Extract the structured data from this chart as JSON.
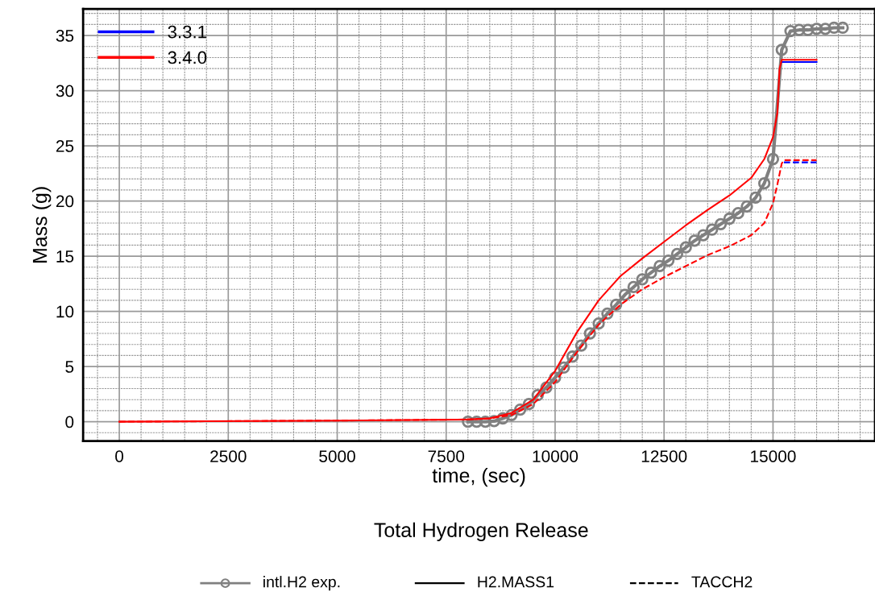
{
  "chart_data": {
    "type": "line",
    "title": "Total Hydrogen Release",
    "xlabel": "time, (sec)",
    "ylabel": "Mass (g)",
    "xlim": [
      -830,
      17340
    ],
    "ylim": [
      -1.75,
      37.4
    ],
    "xticks": [
      0,
      2500,
      5000,
      7500,
      10000,
      12500,
      15000
    ],
    "yticks": [
      0,
      5,
      10,
      15,
      20,
      25,
      30,
      35
    ],
    "grid": true,
    "legend": "top left",
    "annotations": [
      "intl.H2 exp.",
      "H2.MASS1",
      "TACCH2"
    ],
    "series": [
      {
        "color": "#808080",
        "marker": "circle",
        "line_style": "solid",
        "x": [
          8000,
          8200,
          8400,
          8600,
          8800,
          9000,
          9200,
          9400,
          9600,
          9800,
          10000,
          10200,
          10400,
          10600,
          10800,
          11000,
          11200,
          11400,
          11600,
          11800,
          12000,
          12200,
          12400,
          12600,
          12800,
          13000,
          13200,
          13400,
          13600,
          13800,
          14000,
          14200,
          14400,
          14600,
          14800,
          15000,
          15200,
          15400,
          15600,
          15800,
          16000,
          16200,
          16400,
          16600
        ],
        "values": [
          0,
          0,
          0,
          0.05,
          0.3,
          0.6,
          1.1,
          1.6,
          2.4,
          3.1,
          4,
          4.9,
          5.9,
          6.9,
          8,
          8.9,
          9.8,
          10.6,
          11.5,
          12.2,
          12.9,
          13.5,
          14.1,
          14.6,
          15.2,
          15.8,
          16.4,
          16.9,
          17.4,
          17.9,
          18.4,
          18.9,
          19.5,
          20.3,
          21.6,
          23.8,
          33.7,
          35.4,
          35.5,
          35.5,
          35.6,
          35.6,
          35.7,
          35.7
        ]
      },
      {
        "name": "3.3.1",
        "color": "#0000ff",
        "line_style": "solid",
        "x": [
          15200,
          16000
        ],
        "values": [
          32.6,
          32.6
        ]
      },
      {
        "color": "#0000ff",
        "line_style": "dashed",
        "x": [
          15250,
          16000
        ],
        "values": [
          23.5,
          23.5
        ]
      },
      {
        "name": "3.4.0",
        "color": "#ff0000",
        "line_style": "solid",
        "x": [
          0,
          5000,
          8000,
          8500,
          9000,
          9500,
          10000,
          10500,
          11000,
          11500,
          12000,
          12500,
          13000,
          13500,
          14000,
          14500,
          14800,
          15000,
          15100,
          15150,
          15200,
          16000
        ],
        "values": [
          0,
          0.1,
          0.2,
          0.3,
          0.8,
          2.0,
          4.6,
          8.1,
          11.0,
          13.2,
          14.8,
          16.3,
          17.8,
          19.2,
          20.5,
          22.1,
          23.8,
          25.8,
          28,
          32,
          32.8,
          32.8
        ]
      },
      {
        "color": "#ff0000",
        "line_style": "dashed",
        "x": [
          0,
          5000,
          8000,
          8500,
          9000,
          9500,
          10000,
          10500,
          11000,
          11500,
          12000,
          12500,
          13000,
          13500,
          14000,
          14500,
          14800,
          15000,
          15100,
          15200,
          15250,
          16000
        ],
        "values": [
          0,
          0.1,
          0.2,
          0.3,
          0.6,
          1.6,
          3.6,
          6.3,
          8.8,
          10.6,
          12.0,
          13.1,
          14.1,
          15.1,
          15.9,
          16.9,
          18.0,
          19.8,
          21.5,
          23.4,
          23.7,
          23.7
        ]
      }
    ]
  }
}
